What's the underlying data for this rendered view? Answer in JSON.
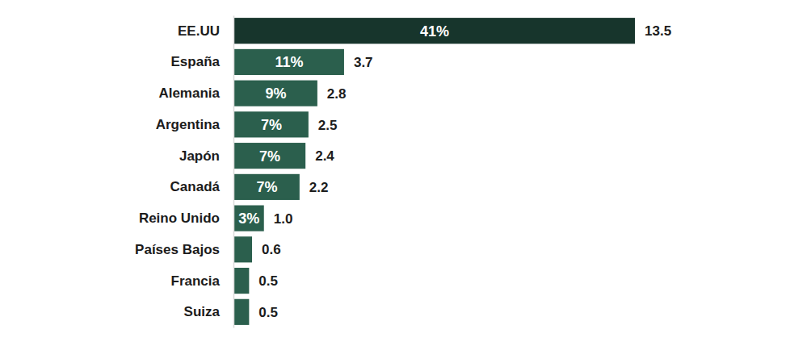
{
  "chart_data": {
    "type": "bar",
    "orientation": "horizontal",
    "categories": [
      "EE.UU",
      "España",
      "Alemania",
      "Argentina",
      "Japón",
      "Canadá",
      "Reino Unido",
      "Países Bajos",
      "Francia",
      "Suiza"
    ],
    "values": [
      13.5,
      3.7,
      2.8,
      2.5,
      2.4,
      2.2,
      1.0,
      0.6,
      0.5,
      0.5
    ],
    "value_labels": [
      "13.5",
      "3.7",
      "2.8",
      "2.5",
      "2.4",
      "2.2",
      "1.0",
      "0.6",
      "0.5",
      "0.5"
    ],
    "shares": [
      41,
      11,
      9,
      7,
      7,
      7,
      3,
      null,
      null,
      null
    ],
    "share_labels": [
      "41%",
      "11%",
      "9%",
      "7%",
      "7%",
      "7%",
      "3%",
      null,
      null,
      null
    ],
    "colors": [
      "#17352c",
      "#2b5f4d",
      "#2b5f4d",
      "#2b5f4d",
      "#2b5f4d",
      "#2b5f4d",
      "#2b5f4d",
      "#2b5f4d",
      "#2b5f4d",
      "#2b5f4d"
    ],
    "data_labels": true,
    "tick_labels": "y"
  }
}
